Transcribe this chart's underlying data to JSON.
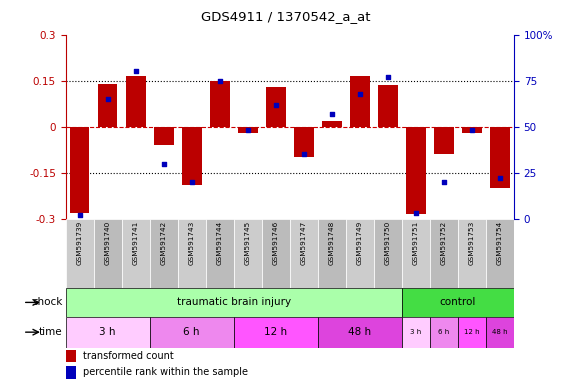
{
  "title": "GDS4911 / 1370542_a_at",
  "samples": [
    "GSM591739",
    "GSM591740",
    "GSM591741",
    "GSM591742",
    "GSM591743",
    "GSM591744",
    "GSM591745",
    "GSM591746",
    "GSM591747",
    "GSM591748",
    "GSM591749",
    "GSM591750",
    "GSM591751",
    "GSM591752",
    "GSM591753",
    "GSM591754"
  ],
  "bar_values": [
    -0.28,
    0.14,
    0.165,
    -0.06,
    -0.19,
    0.15,
    -0.02,
    0.13,
    -0.1,
    0.02,
    0.165,
    0.135,
    -0.285,
    -0.09,
    -0.02,
    -0.2
  ],
  "dot_values": [
    2,
    65,
    80,
    30,
    20,
    75,
    48,
    62,
    35,
    57,
    68,
    77,
    3,
    20,
    48,
    22
  ],
  "ylim": [
    -0.3,
    0.3
  ],
  "yticks_left": [
    -0.3,
    -0.15,
    0,
    0.15,
    0.3
  ],
  "yticks_right": [
    0,
    25,
    50,
    75,
    100
  ],
  "bar_color": "#bb0000",
  "dot_color": "#0000bb",
  "hline_color": "#cc0000",
  "dotted_color": "black",
  "shock_tbi_label": "traumatic brain injury",
  "shock_tbi_color": "#aaffaa",
  "shock_ctrl_label": "control",
  "shock_ctrl_color": "#44dd44",
  "shock_tbi_count": 12,
  "shock_ctrl_count": 4,
  "time_groups": [
    {
      "label": "3 h",
      "count": 3,
      "color": "#ffccff"
    },
    {
      "label": "6 h",
      "count": 3,
      "color": "#ee88ee"
    },
    {
      "label": "12 h",
      "count": 3,
      "color": "#ff55ff"
    },
    {
      "label": "48 h",
      "count": 3,
      "color": "#dd44dd"
    },
    {
      "label": "3 h",
      "count": 1,
      "color": "#ffccff"
    },
    {
      "label": "6 h",
      "count": 1,
      "color": "#ee88ee"
    },
    {
      "label": "12 h",
      "count": 1,
      "color": "#ff55ff"
    },
    {
      "label": "48 h",
      "count": 1,
      "color": "#dd44dd"
    }
  ],
  "legend_bar_label": "transformed count",
  "legend_dot_label": "percentile rank within the sample",
  "shock_label": "shock",
  "time_label": "time",
  "label_color": "#888888",
  "sample_box_colors": [
    "#cccccc",
    "#bbbbbb"
  ]
}
